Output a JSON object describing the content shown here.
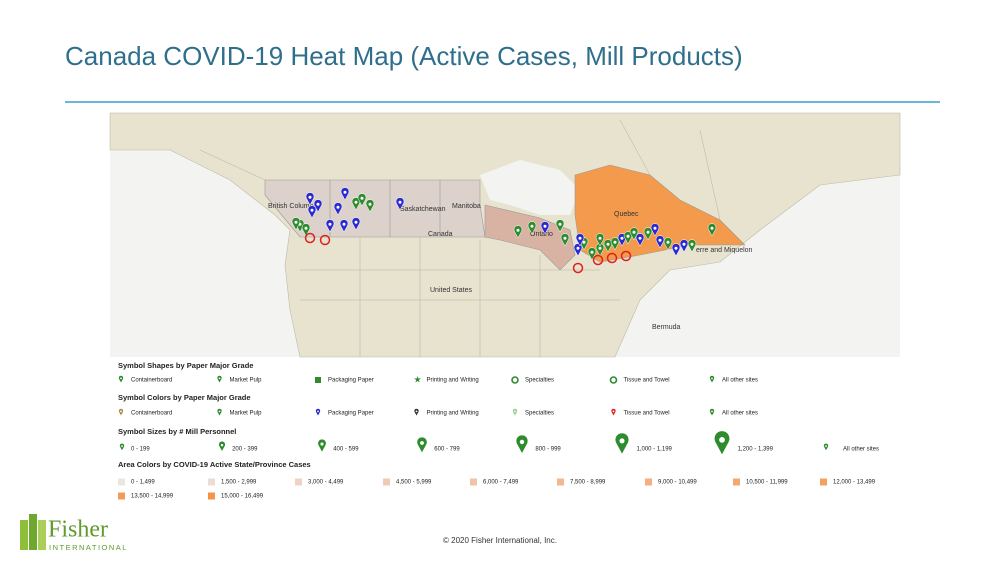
{
  "title": "Canada COVID-19 Heat Map (Active Cases, Mill Products)",
  "map": {
    "labels": [
      "British Columbia",
      "Saskatchewan",
      "Manitoba",
      "Canada",
      "Ontario",
      "Quebec",
      "United States",
      "Bermuda",
      "erre and Miquelon"
    ]
  },
  "legend": {
    "sections": [
      {
        "heading": "Symbol Shapes by Paper Major Grade",
        "items": [
          {
            "label": "Containerboard"
          },
          {
            "label": "Market Pulp"
          },
          {
            "label": "Packaging Paper"
          },
          {
            "label": "Printing and Writing"
          },
          {
            "label": "Specialties"
          },
          {
            "label": "Tissue and Towel"
          },
          {
            "label": "All other sites"
          }
        ]
      },
      {
        "heading": "Symbol Colors by Paper Major Grade",
        "items": [
          {
            "label": "Containerboard",
            "color": "#b08a50"
          },
          {
            "label": "Market Pulp",
            "color": "#2e8b2e"
          },
          {
            "label": "Packaging Paper",
            "color": "#2a2ad0"
          },
          {
            "label": "Printing and Writing",
            "color": "#333333"
          },
          {
            "label": "Specialties",
            "color": "#8fd08f"
          },
          {
            "label": "Tissue and Towel",
            "color": "#e02020"
          },
          {
            "label": "All other sites",
            "color": "#2e8b2e"
          }
        ]
      },
      {
        "heading": "Symbol Sizes by # Mill Personnel",
        "items": [
          {
            "label": "0 - 199"
          },
          {
            "label": "200 - 399"
          },
          {
            "label": "400 - 599"
          },
          {
            "label": "600 - 799"
          },
          {
            "label": "800 - 999"
          },
          {
            "label": "1,000 - 1,199"
          },
          {
            "label": "1,200 - 1,399"
          },
          {
            "label": "All other sites"
          }
        ]
      },
      {
        "heading": "Area Colors by COVID-19 Active State/Province Cases",
        "items": [
          {
            "label": "0 - 1,499",
            "color": "#ece6e0"
          },
          {
            "label": "1,500 - 2,999",
            "color": "#ecdcd2"
          },
          {
            "label": "3,000 - 4,499",
            "color": "#eed2c2"
          },
          {
            "label": "4,500 - 5,999",
            "color": "#efcab4"
          },
          {
            "label": "6,000 - 7,499",
            "color": "#f0c2a6"
          },
          {
            "label": "7,500 - 8,999",
            "color": "#f2b890"
          },
          {
            "label": "9,000 - 10,499",
            "color": "#f3b07e"
          },
          {
            "label": "10,500 - 11,999",
            "color": "#f4a870"
          },
          {
            "label": "12,000 - 13,499",
            "color": "#f5a062"
          },
          {
            "label": "13,500 - 14,999",
            "color": "#f59a56"
          },
          {
            "label": "15,000 - 16,499",
            "color": "#f4934a"
          }
        ]
      }
    ]
  },
  "footer": {
    "copyright": "© 2020 Fisher International, Inc.",
    "logo": {
      "name": "Fisher",
      "tagline": "INTERNATIONAL"
    }
  }
}
